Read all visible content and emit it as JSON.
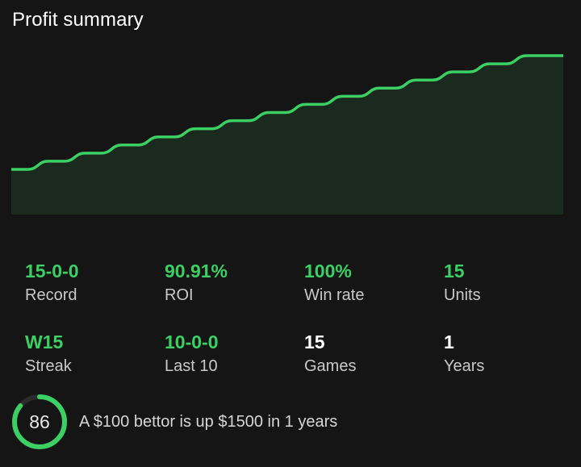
{
  "title": "Profit summary",
  "colors": {
    "accent": "#3ccf63",
    "chart_fill": "#1b2a1f",
    "background": "#151515"
  },
  "chart_data": {
    "type": "area",
    "x": [
      1,
      2,
      3,
      4,
      5,
      6,
      7,
      8,
      9,
      10,
      11,
      12,
      13,
      14,
      15
    ],
    "values": [
      1,
      2,
      3,
      4,
      5,
      6,
      7,
      8,
      9,
      10,
      11,
      12,
      13,
      14,
      15
    ],
    "title": "",
    "xlabel": "",
    "ylabel": "",
    "grid": false
  },
  "stats": [
    {
      "value": "15-0-0",
      "label": "Record",
      "highlight": true
    },
    {
      "value": "90.91%",
      "label": "ROI",
      "highlight": true
    },
    {
      "value": "100%",
      "label": "Win rate",
      "highlight": true
    },
    {
      "value": "15",
      "label": "Units",
      "highlight": true
    },
    {
      "value": "W15",
      "label": "Streak",
      "highlight": true
    },
    {
      "value": "10-0-0",
      "label": "Last 10",
      "highlight": true
    },
    {
      "value": "15",
      "label": "Games",
      "highlight": false
    },
    {
      "value": "1",
      "label": "Years",
      "highlight": false
    }
  ],
  "footer": {
    "score": "86",
    "score_fraction": 0.86,
    "text": "A $100 bettor is up $1500 in 1 years"
  }
}
